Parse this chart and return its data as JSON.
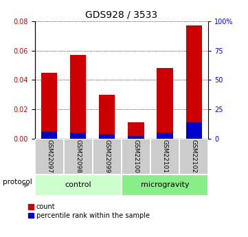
{
  "title": "GDS928 / 3533",
  "categories": [
    "GSM22097",
    "GSM22098",
    "GSM22099",
    "GSM22100",
    "GSM22101",
    "GSM22102"
  ],
  "red_values": [
    0.045,
    0.057,
    0.03,
    0.011,
    0.048,
    0.077
  ],
  "blue_values": [
    0.005,
    0.004,
    0.003,
    0.002,
    0.004,
    0.011
  ],
  "ylim_left": [
    0,
    0.08
  ],
  "ylim_right": [
    0,
    100
  ],
  "yticks_left": [
    0,
    0.02,
    0.04,
    0.06,
    0.08
  ],
  "yticks_right": [
    0,
    25,
    50,
    75,
    100
  ],
  "ytick_labels_right": [
    "0",
    "25",
    "50",
    "75",
    "100%"
  ],
  "groups": [
    {
      "label": "control",
      "indices": [
        0,
        1,
        2
      ],
      "color": "#ccffcc"
    },
    {
      "label": "microgravity",
      "indices": [
        3,
        4,
        5
      ],
      "color": "#88ee88"
    }
  ],
  "protocol_label": "protocol",
  "legend_red": "count",
  "legend_blue": "percentile rank within the sample",
  "bar_width": 0.55,
  "red_color": "#cc0000",
  "blue_color": "#0000cc",
  "tick_label_bg": "#cccccc"
}
